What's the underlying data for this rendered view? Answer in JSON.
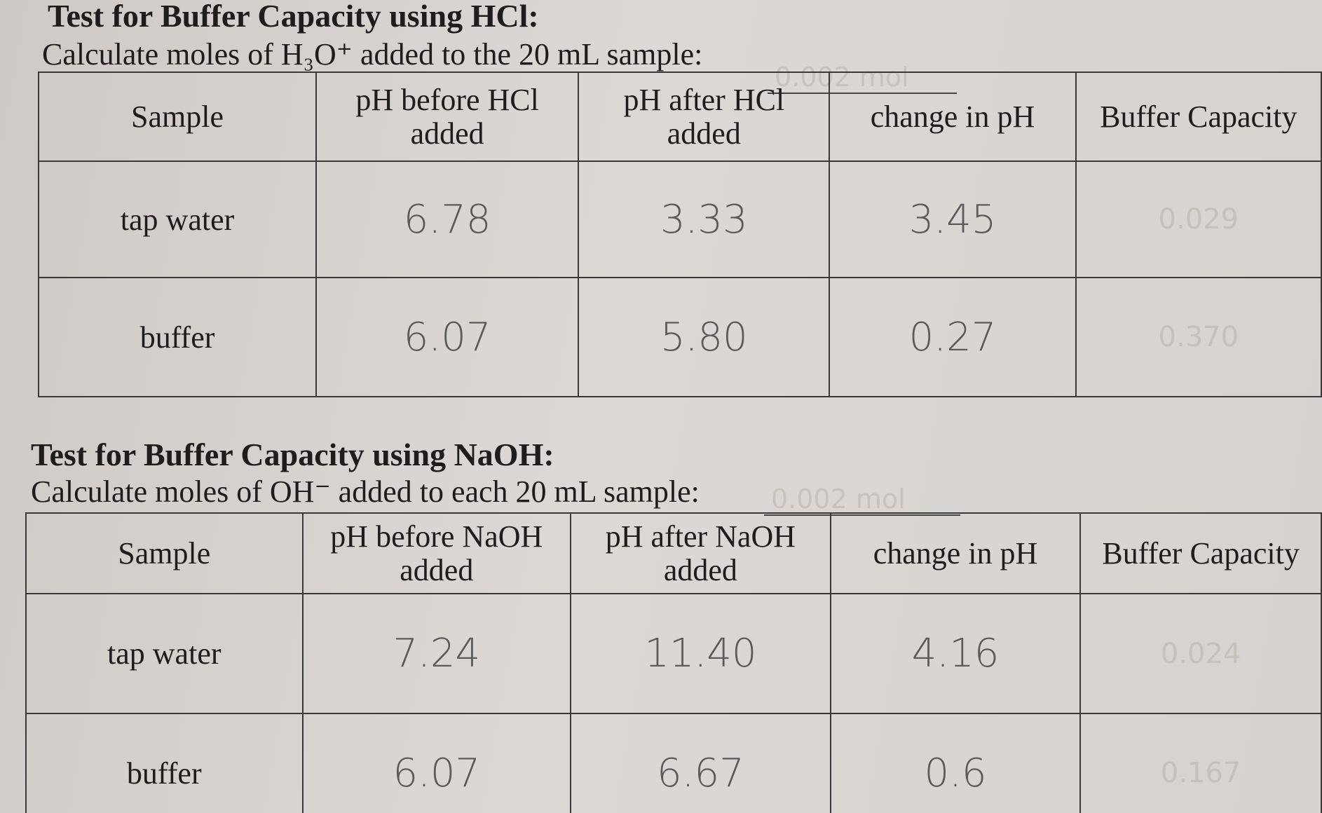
{
  "sections": [
    {
      "title": "Test for Buffer Capacity using HCl:",
      "prompt": "Calculate moles of H₃O⁺ added to the 20 mL sample:",
      "answer": "0.002 mol",
      "table": {
        "header": [
          "Sample",
          "pH before HCl added",
          "pH after HCl added",
          "change in pH",
          "Buffer Capacity"
        ],
        "rows": [
          [
            "tap water",
            "6.78",
            "3.33",
            "3.45",
            "0.029"
          ],
          [
            "buffer",
            "6.07",
            "5.80",
            "0.27",
            "0.370"
          ]
        ]
      }
    },
    {
      "title": "Test for Buffer Capacity using NaOH:",
      "prompt": "Calculate moles of OH⁻ added to each 20 mL sample:",
      "answer": "0.002 mol",
      "table": {
        "header": [
          "Sample",
          "pH before NaOH added",
          "pH after NaOH added",
          "change in pH",
          "Buffer Capacity"
        ],
        "rows": [
          [
            "tap water",
            "7.24",
            "11.40",
            "4.16",
            "0.024"
          ],
          [
            "buffer",
            "6.07",
            "6.67",
            "0.6",
            "0.167"
          ]
        ]
      }
    }
  ]
}
